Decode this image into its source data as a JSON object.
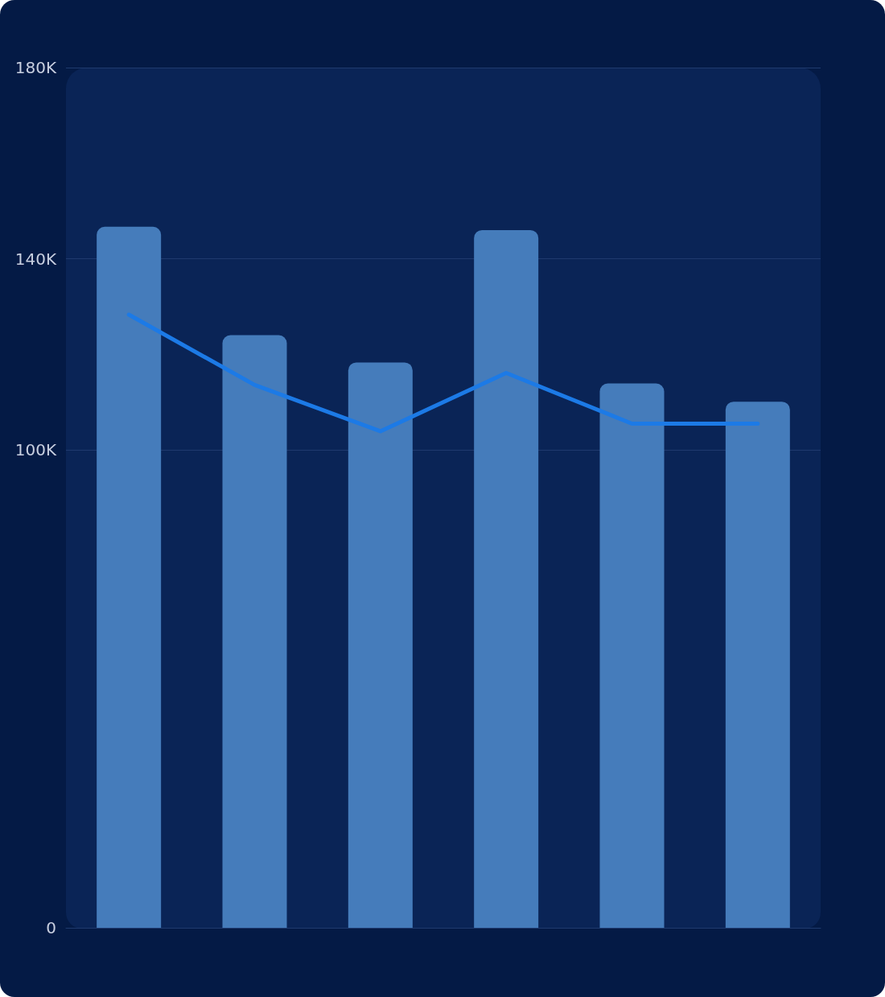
{
  "chart_data": {
    "type": "bar",
    "categories": [
      null,
      null,
      null,
      null,
      null,
      null
    ],
    "series": [
      {
        "color": "#457cbb",
        "values": [
          146700,
          124000,
          118300,
          146000,
          113900,
          110100
        ]
      },
      {
        "type": "line",
        "color": "#1c7ae6",
        "values": [
          128300,
          113600,
          103900,
          116100,
          105500,
          105500
        ]
      }
    ],
    "ylim": [
      0,
      180000
    ],
    "yticks": [
      0,
      {
        "value": 100000,
        "label": "100K"
      },
      {
        "value": 140000,
        "label": "140K"
      },
      {
        "value": 180000,
        "label": "180K"
      }
    ],
    "grid": "y",
    "marker": "none",
    "line_style": "solid"
  }
}
